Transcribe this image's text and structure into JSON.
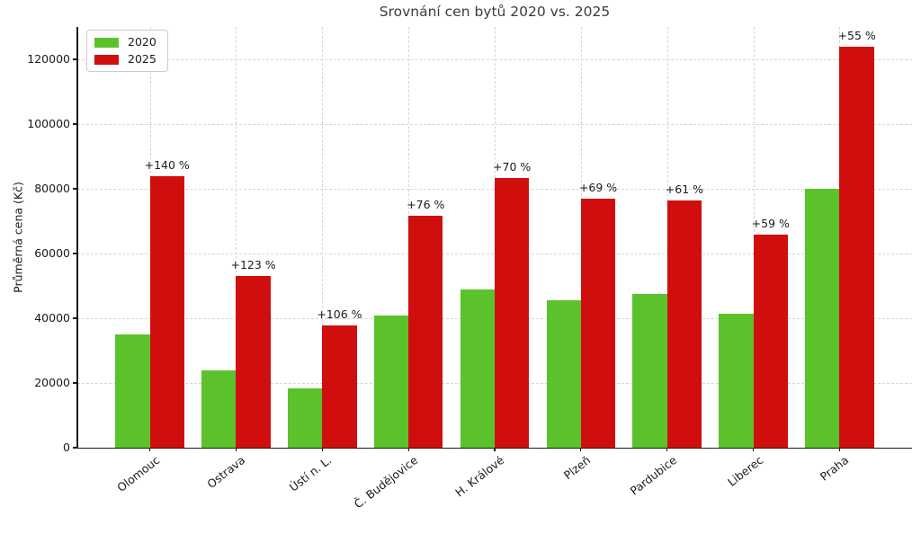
{
  "chart_data": {
    "type": "bar",
    "title": "Srovnání cen bytů 2020 vs. 2025",
    "xlabel": "",
    "ylabel": "Průměrná cena (Kč)",
    "categories": [
      "Olomouc",
      "Ostrava",
      "Ústí n. L.",
      "Č. Budějovice",
      "H. Králové",
      "Plzeň",
      "Pardubice",
      "Liberec",
      "Praha"
    ],
    "series": [
      {
        "name": "2020",
        "color": "#5cc22c",
        "values": [
          35000,
          23800,
          18400,
          40800,
          49000,
          45500,
          47500,
          41400,
          80000
        ]
      },
      {
        "name": "2025",
        "color": "#d10e0e",
        "values": [
          84000,
          53000,
          37900,
          71800,
          83300,
          76900,
          76500,
          65800,
          124000
        ]
      }
    ],
    "annotations": [
      "+140 %",
      "+123 %",
      "+106 %",
      "+76 %",
      "+70 %",
      "+69 %",
      "+61 %",
      "+59 %",
      "+55 %"
    ],
    "ylim": [
      0,
      130000
    ],
    "yticks": [
      0,
      20000,
      40000,
      60000,
      80000,
      100000,
      120000
    ],
    "grid": true,
    "grid_style": "dashed",
    "legend_position": "upper left",
    "bar_colors": {
      "2020": "#5cc22c",
      "2025": "#d10e0e"
    },
    "axis_color": "#1a1a1a",
    "grid_color": "#d6d6d6",
    "title_color": "#3c3c3c"
  }
}
